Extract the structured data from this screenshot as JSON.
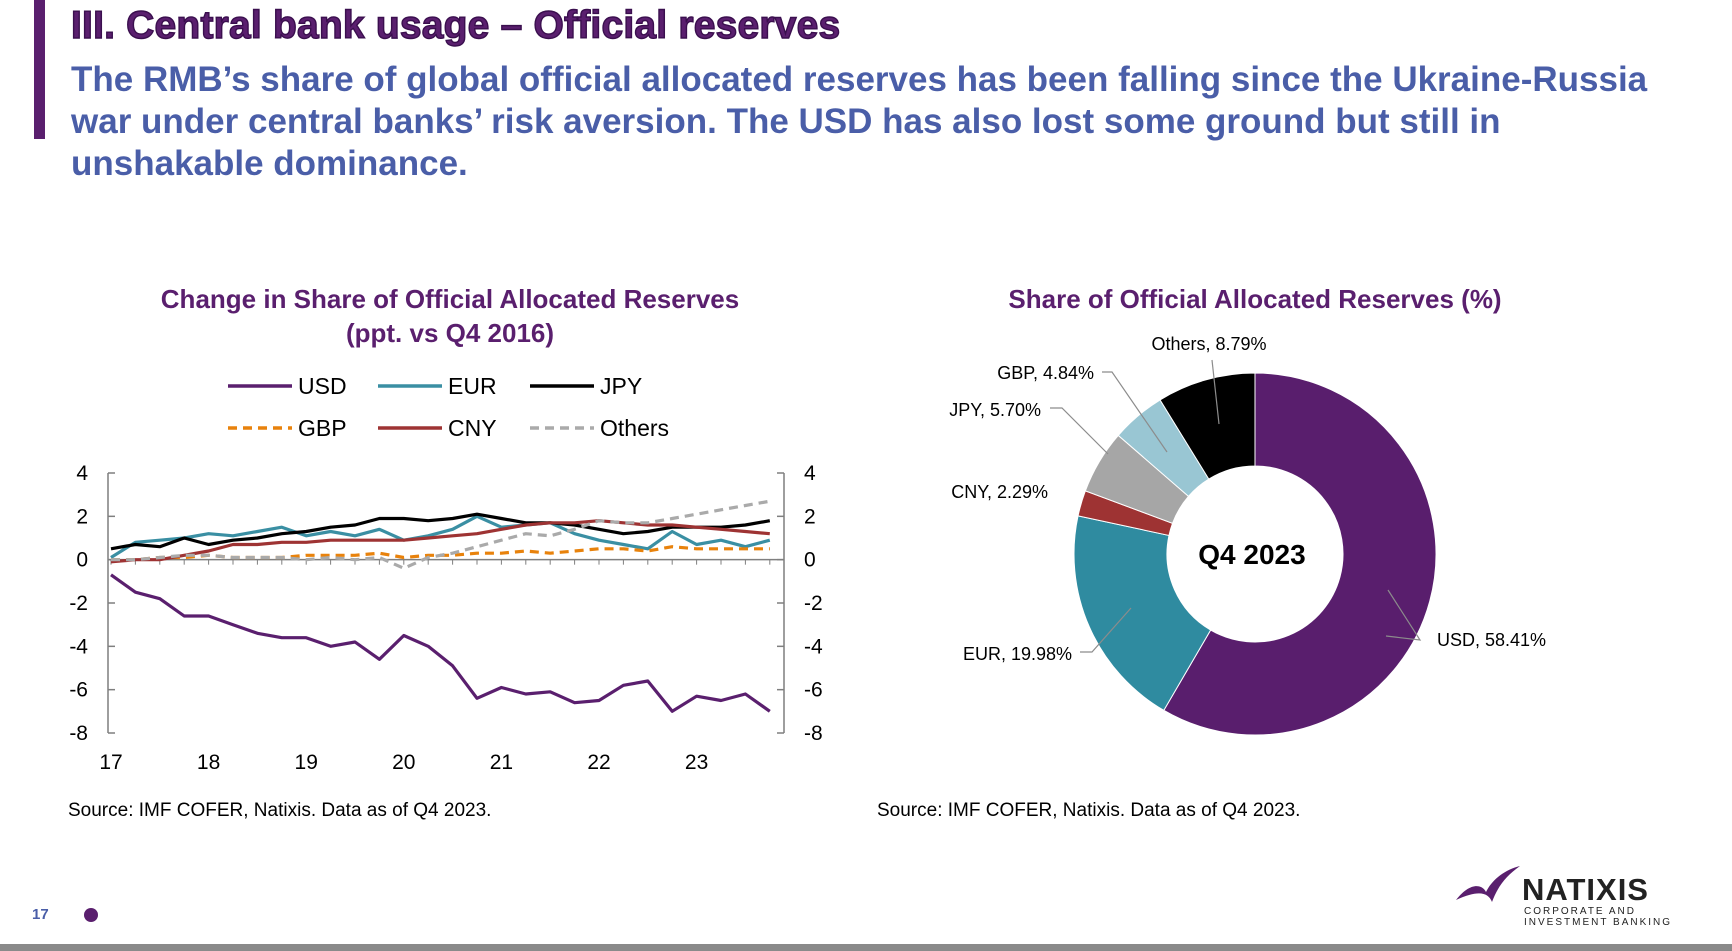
{
  "slide": {
    "title": "III. Central bank usage – Official reserves",
    "subtitle": "The RMB’s share of global official allocated reserves has been falling since the Ukraine-Russia war under central banks’ risk aversion. The USD has also lost some ground but still in unshakable dominance.",
    "page_number": "17",
    "logo": {
      "name": "NATIXIS",
      "tagline": "CORPORATE AND INVESTMENT BANKING"
    }
  },
  "chart_data": [
    {
      "type": "line",
      "title": "Change in Share of Official Allocated Reserves (ppt. vs Q4 2016)",
      "xlabel": "",
      "ylabel": "",
      "x_tick_labels": [
        "17",
        "18",
        "19",
        "20",
        "21",
        "22",
        "23"
      ],
      "y_ticks": [
        4,
        2,
        0,
        -2,
        -4,
        -6,
        -8
      ],
      "ylim": [
        -8,
        4
      ],
      "y_axes": "left-and-right",
      "legend_position": "top",
      "series": [
        {
          "name": "USD",
          "color": "#5a1f6e",
          "dash": "solid",
          "values": [
            -0.7,
            -1.5,
            -1.8,
            -2.6,
            -2.6,
            -3.0,
            -3.4,
            -3.6,
            -3.6,
            -4.0,
            -3.8,
            -4.6,
            -3.5,
            -4.0,
            -4.9,
            -6.4,
            -5.9,
            -6.2,
            -6.1,
            -6.6,
            -6.5,
            -5.8,
            -5.6,
            -7.0,
            -6.3,
            -6.5,
            -6.2,
            -7.0
          ]
        },
        {
          "name": "EUR",
          "color": "#3a8fa3",
          "dash": "solid",
          "values": [
            0.1,
            0.8,
            0.9,
            1.0,
            1.2,
            1.1,
            1.3,
            1.5,
            1.1,
            1.3,
            1.1,
            1.4,
            0.9,
            1.1,
            1.4,
            2.0,
            1.5,
            1.6,
            1.7,
            1.2,
            0.9,
            0.7,
            0.5,
            1.3,
            0.7,
            0.9,
            0.6,
            0.9
          ]
        },
        {
          "name": "JPY",
          "color": "#000000",
          "dash": "solid",
          "values": [
            0.5,
            0.7,
            0.6,
            1.0,
            0.7,
            0.9,
            1.0,
            1.2,
            1.3,
            1.5,
            1.6,
            1.9,
            1.9,
            1.8,
            1.9,
            2.1,
            1.9,
            1.7,
            1.7,
            1.6,
            1.4,
            1.2,
            1.3,
            1.5,
            1.5,
            1.5,
            1.6,
            1.8
          ]
        },
        {
          "name": "GBP",
          "color": "#e8820c",
          "dash": "dashed",
          "values": [
            0.0,
            0.0,
            0.1,
            0.1,
            0.2,
            0.1,
            0.1,
            0.1,
            0.2,
            0.2,
            0.2,
            0.3,
            0.1,
            0.2,
            0.2,
            0.3,
            0.3,
            0.4,
            0.3,
            0.4,
            0.5,
            0.5,
            0.4,
            0.6,
            0.5,
            0.5,
            0.5,
            0.5
          ]
        },
        {
          "name": "CNY",
          "color": "#9e3333",
          "dash": "solid",
          "values": [
            -0.1,
            0.0,
            0.0,
            0.2,
            0.4,
            0.7,
            0.7,
            0.8,
            0.8,
            0.9,
            0.9,
            0.9,
            0.9,
            1.0,
            1.1,
            1.2,
            1.4,
            1.6,
            1.7,
            1.7,
            1.8,
            1.7,
            1.6,
            1.6,
            1.5,
            1.4,
            1.3,
            1.2
          ]
        },
        {
          "name": "Others",
          "color": "#aaaaaa",
          "dash": "dashed",
          "values": [
            0.0,
            0.0,
            0.1,
            0.2,
            0.2,
            0.1,
            0.1,
            0.1,
            0.0,
            0.1,
            0.0,
            0.1,
            -0.4,
            0.1,
            0.3,
            0.6,
            0.9,
            1.2,
            1.1,
            1.4,
            1.8,
            1.7,
            1.7,
            1.9,
            2.1,
            2.3,
            2.5,
            2.7
          ]
        }
      ]
    },
    {
      "type": "pie",
      "style": "donut",
      "title": "Share of Official Allocated Reserves (%)",
      "center_label": "Q4 2023",
      "slices": [
        {
          "label": "USD, 58.41%",
          "name": "USD",
          "value": 58.41,
          "color": "#591e6d"
        },
        {
          "label": "EUR, 19.98%",
          "name": "EUR",
          "value": 19.98,
          "color": "#2f8ba0"
        },
        {
          "label": "CNY, 2.29%",
          "name": "CNY",
          "value": 2.29,
          "color": "#9e3333"
        },
        {
          "label": "JPY, 5.70%",
          "name": "JPY",
          "value": 5.7,
          "color": "#a6a6a6"
        },
        {
          "label": "GBP, 4.84%",
          "name": "GBP",
          "value": 4.84,
          "color": "#99c6d3"
        },
        {
          "label": "Others, 8.79%",
          "name": "Others",
          "value": 8.79,
          "color": "#000000"
        }
      ]
    }
  ],
  "sources": {
    "left": "Source: IMF COFER, Natixis. Data as of Q4 2023.",
    "right": "Source: IMF COFER, Natixis. Data as of Q4 2023."
  }
}
